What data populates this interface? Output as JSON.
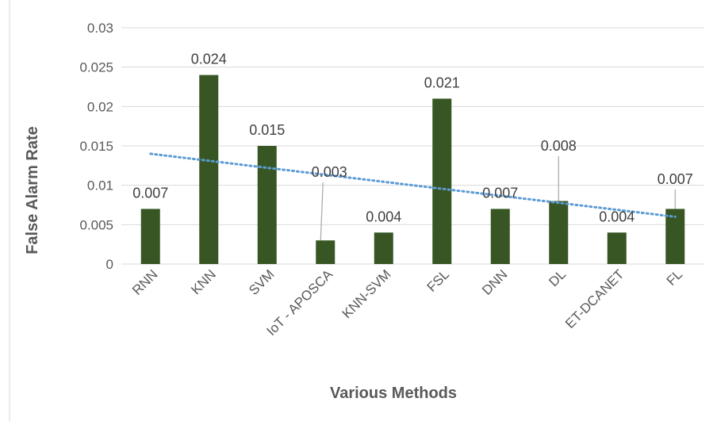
{
  "chart_data": {
    "type": "bar",
    "categories": [
      "RNN",
      "KNN",
      "SVM",
      "IoT - APOSCA",
      "KNN-SVM",
      "FSL",
      "DNN",
      "DL",
      "ET-DCANET",
      "FL"
    ],
    "values": [
      0.007,
      0.024,
      0.015,
      0.003,
      0.004,
      0.021,
      0.007,
      0.008,
      0.004,
      0.007
    ],
    "data_labels": [
      "0.007",
      "0.024",
      "0.015",
      "0.003",
      "0.004",
      "0.021",
      "0.007",
      "0.008",
      "0.004",
      "0.007"
    ],
    "ytick_labels": [
      "0",
      "0.005",
      "0.01",
      "0.015",
      "0.02",
      "0.025",
      "0.03"
    ],
    "ytick_values": [
      0,
      0.005,
      0.01,
      0.015,
      0.02,
      0.025,
      0.03
    ],
    "xlabel": "Various Methods",
    "ylabel": "False Alarm Rate",
    "ylim": [
      0,
      0.03
    ],
    "grid": true,
    "trendline": {
      "type": "linear",
      "start": 0.014,
      "end": 0.006
    },
    "colors": {
      "bar": "#375623",
      "trend": "#5b9bd5",
      "grid": "#d9d9d9"
    }
  }
}
